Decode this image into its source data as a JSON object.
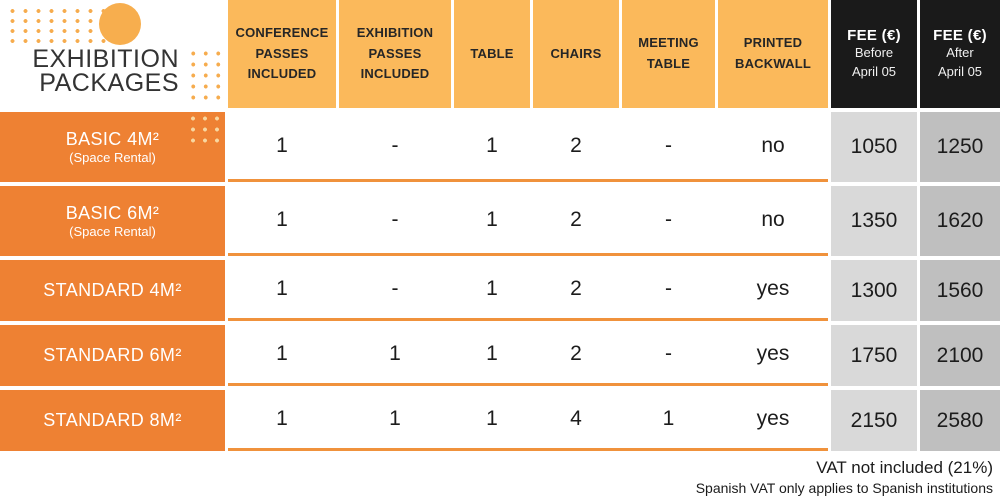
{
  "colors": {
    "header_orange": "#FBB95B",
    "row_label_orange": "#EE8133",
    "separator_orange": "#F0923C",
    "fee_header_black": "#1A1A1A",
    "fee_before_gray": "#D9D9D9",
    "fee_after_gray": "#BFBFBF",
    "dot_accent_orange": "#F6AC4E"
  },
  "title": {
    "line1": "EXHIBITION",
    "line2": "PACKAGES"
  },
  "table": {
    "column_headers": [
      "CONFERENCE PASSES INCLUDED",
      "EXHIBITION PASSES INCLUDED",
      "TABLE",
      "CHAIRS",
      "MEETING TABLE",
      "PRINTED BACKWALL"
    ],
    "fee_columns": [
      {
        "title": "FEE (€)",
        "line1": "Before",
        "line2": "April 05"
      },
      {
        "title": "FEE (€)",
        "line1": "After",
        "line2": "April 05"
      }
    ],
    "rows": [
      {
        "name": "BASIC 4M²",
        "sub": "(Space Rental)",
        "values": [
          "1",
          "-",
          "1",
          "2",
          "-",
          "no"
        ],
        "fee_before": "1050",
        "fee_after": "1250"
      },
      {
        "name": "BASIC 6M²",
        "sub": "(Space Rental)",
        "values": [
          "1",
          "-",
          "1",
          "2",
          "-",
          "no"
        ],
        "fee_before": "1350",
        "fee_after": "1620"
      },
      {
        "name": "STANDARD 4M²",
        "sub": "",
        "values": [
          "1",
          "-",
          "1",
          "2",
          "-",
          "yes"
        ],
        "fee_before": "1300",
        "fee_after": "1560"
      },
      {
        "name": "STANDARD 6M²",
        "sub": "",
        "values": [
          "1",
          "1",
          "1",
          "2",
          "-",
          "yes"
        ],
        "fee_before": "1750",
        "fee_after": "2100"
      },
      {
        "name": "STANDARD 8M²",
        "sub": "",
        "values": [
          "1",
          "1",
          "1",
          "4",
          "1",
          "yes"
        ],
        "fee_before": "2150",
        "fee_after": "2580"
      }
    ]
  },
  "footer": {
    "line1": "VAT not included (21%)",
    "line2": "Spanish VAT only applies to Spanish institutions"
  },
  "chart_data": {
    "type": "table",
    "title": "Exhibition Packages",
    "columns": [
      "Package",
      "Conference passes included",
      "Exhibition passes included",
      "Table",
      "Chairs",
      "Meeting table",
      "Printed backwall",
      "Fee (€) before April 05",
      "Fee (€) after April 05"
    ],
    "rows": [
      [
        "BASIC 4M² (Space Rental)",
        "1",
        "-",
        "1",
        "2",
        "-",
        "no",
        "1050",
        "1250"
      ],
      [
        "BASIC 6M² (Space Rental)",
        "1",
        "-",
        "1",
        "2",
        "-",
        "no",
        "1350",
        "1620"
      ],
      [
        "STANDARD 4M²",
        "1",
        "-",
        "1",
        "2",
        "-",
        "yes",
        "1300",
        "1560"
      ],
      [
        "STANDARD 6M²",
        "1",
        "1",
        "1",
        "2",
        "-",
        "yes",
        "1750",
        "2100"
      ],
      [
        "STANDARD 8M²",
        "1",
        "1",
        "1",
        "4",
        "1",
        "yes",
        "2150",
        "2580"
      ]
    ],
    "notes": [
      "VAT not included (21%)",
      "Spanish VAT only applies to Spanish institutions"
    ]
  }
}
